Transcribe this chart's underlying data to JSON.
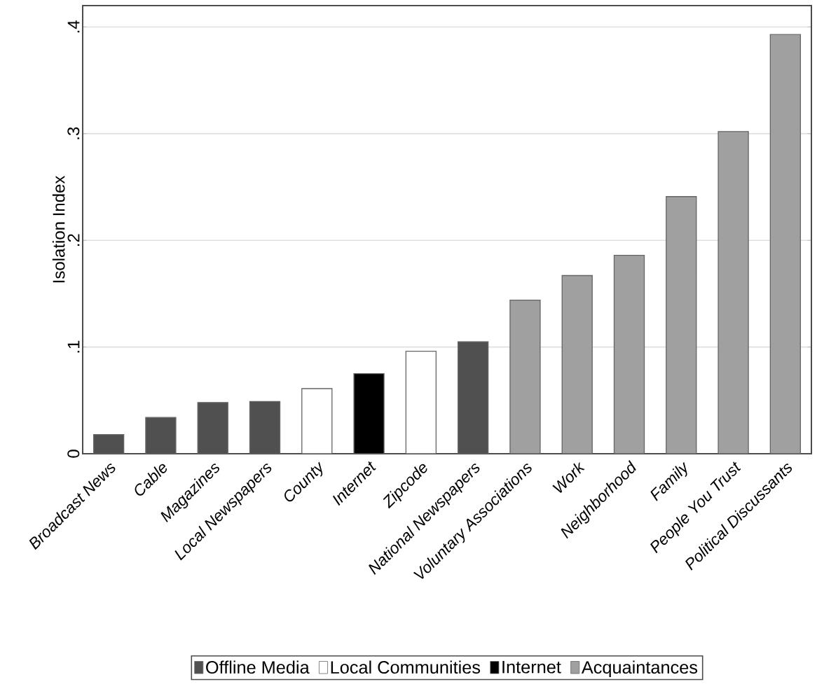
{
  "chart_data": {
    "type": "bar",
    "ylabel": "Isolation Index",
    "categories": [
      "Broadcast News",
      "Cable",
      "Magazines",
      "Local Newspapers",
      "County",
      "Internet",
      "Zipcode",
      "National Newspapers",
      "Voluntary Associations",
      "Work",
      "Neighborhood",
      "Family",
      "People You Trust",
      "Political Discussants"
    ],
    "series": [
      {
        "name": "Offline Media",
        "color": "#505050",
        "values": [
          0.018,
          0.034,
          0.048,
          0.049,
          null,
          null,
          null,
          0.105,
          null,
          null,
          null,
          null,
          null,
          null
        ]
      },
      {
        "name": "Local Communities",
        "color": "#ffffff",
        "values": [
          null,
          null,
          null,
          null,
          0.061,
          null,
          0.096,
          null,
          null,
          null,
          null,
          null,
          null,
          null
        ]
      },
      {
        "name": "Internet",
        "color": "#000000",
        "values": [
          null,
          null,
          null,
          null,
          null,
          0.075,
          null,
          null,
          null,
          null,
          null,
          null,
          null,
          null
        ]
      },
      {
        "name": "Acquaintances",
        "color": "#a0a0a0",
        "values": [
          null,
          null,
          null,
          null,
          null,
          null,
          null,
          null,
          0.144,
          0.167,
          0.186,
          0.241,
          0.302,
          0.393
        ]
      }
    ],
    "ylim": [
      0,
      0.42
    ],
    "yticks": [
      0,
      {
        "value": 0.1,
        "label": ".1"
      },
      {
        "value": 0.2,
        "label": ".2"
      },
      {
        "value": 0.3,
        "label": ".3"
      },
      {
        "value": 0.4,
        "label": ".4"
      }
    ],
    "grid": "y",
    "legend": "bottom"
  }
}
